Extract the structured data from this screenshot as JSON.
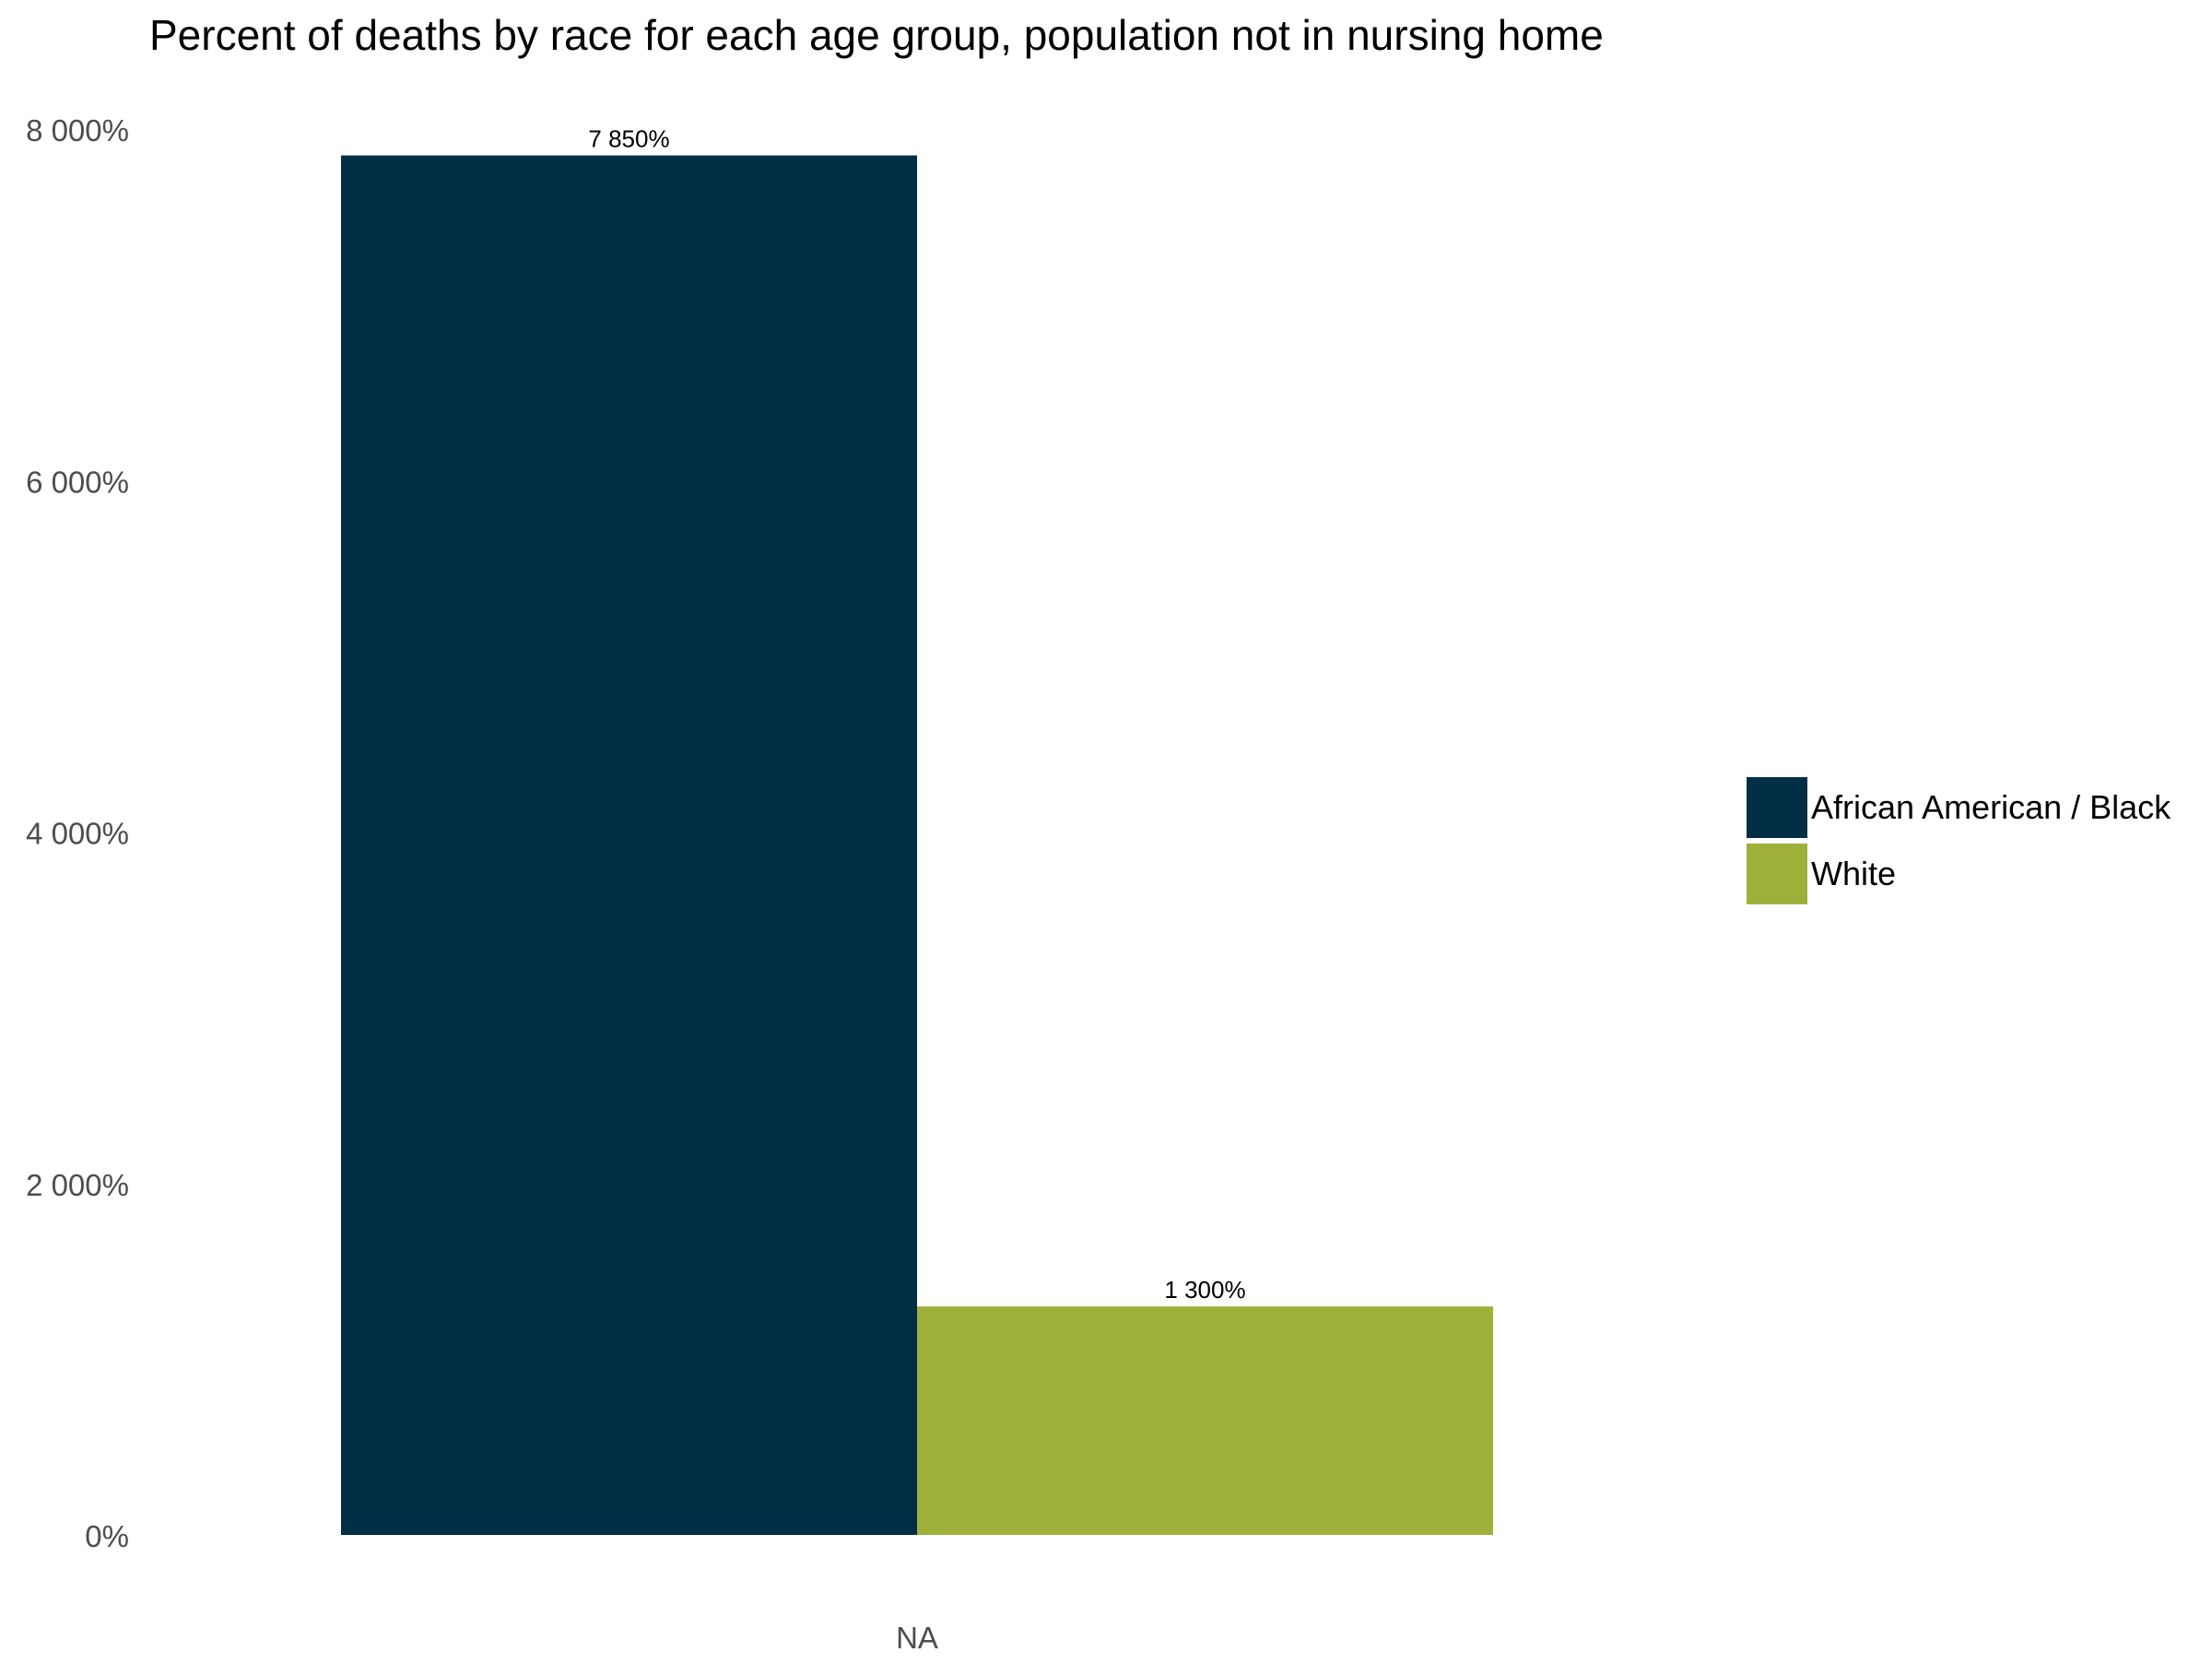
{
  "chart_data": {
    "type": "bar",
    "title": "Percent of deaths by race for each age group, population not in nursing home",
    "xlabel": "",
    "ylabel": "",
    "categories": [
      "NA"
    ],
    "series": [
      {
        "name": "African American / Black",
        "values": [
          7850
        ],
        "label": "7 850%",
        "color": "#002e45"
      },
      {
        "name": "White",
        "values": [
          1300
        ],
        "label": "1 300%",
        "color": "#9fb03a"
      }
    ],
    "ylim": [
      0,
      8000
    ],
    "yticks": [
      0,
      2000,
      4000,
      6000,
      8000
    ],
    "ytick_labels": [
      "0%",
      "2 000%",
      "4 000%",
      "6 000%",
      "8 000%"
    ],
    "grid": false,
    "legend": "right"
  }
}
